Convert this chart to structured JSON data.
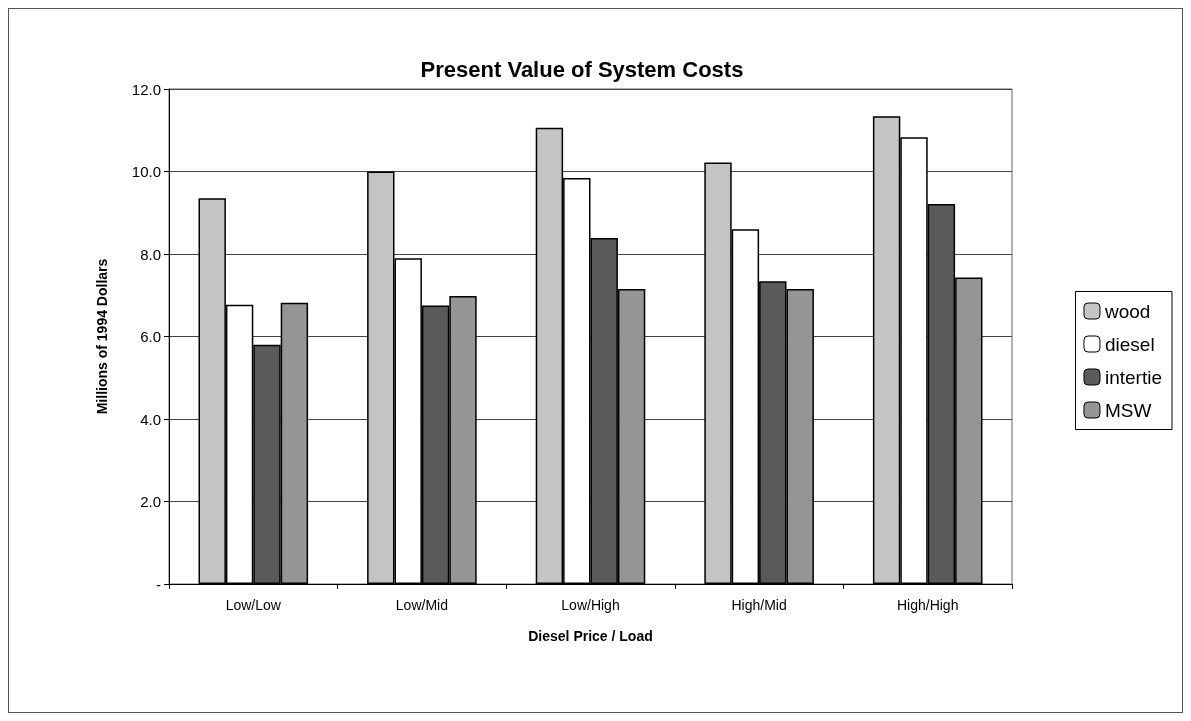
{
  "chart_data": {
    "type": "bar",
    "title": "Present Value of System Costs",
    "xlabel": "Diesel Price / Load",
    "ylabel": "Millions of 1994 Dollars",
    "categories": [
      "Low/Low",
      "Low/Mid",
      "Low/High",
      "High/Mid",
      "High/High"
    ],
    "series": [
      {
        "name": "wood",
        "color": "#c4c4c4",
        "values": [
          9.35,
          10.0,
          11.06,
          10.22,
          11.34
        ]
      },
      {
        "name": "diesel",
        "color": "#ffffff",
        "values": [
          6.77,
          7.9,
          9.84,
          8.6,
          10.83
        ]
      },
      {
        "name": "intertie",
        "color": "#5a5a5a",
        "values": [
          5.8,
          6.75,
          8.39,
          7.34,
          9.21
        ]
      },
      {
        "name": "MSW",
        "color": "#959595",
        "values": [
          6.82,
          6.98,
          7.15,
          7.15,
          7.43
        ]
      }
    ],
    "ylim": [
      0,
      12
    ],
    "yticks": [
      {
        "value": 0,
        "label": "-"
      },
      {
        "value": 2,
        "label": "2.0"
      },
      {
        "value": 4,
        "label": "4.0"
      },
      {
        "value": 6,
        "label": "6.0"
      },
      {
        "value": 8,
        "label": "8.0"
      },
      {
        "value": 10,
        "label": "10.0"
      },
      {
        "value": 12,
        "label": "12.0"
      }
    ],
    "grid": "y",
    "legend": "right"
  }
}
